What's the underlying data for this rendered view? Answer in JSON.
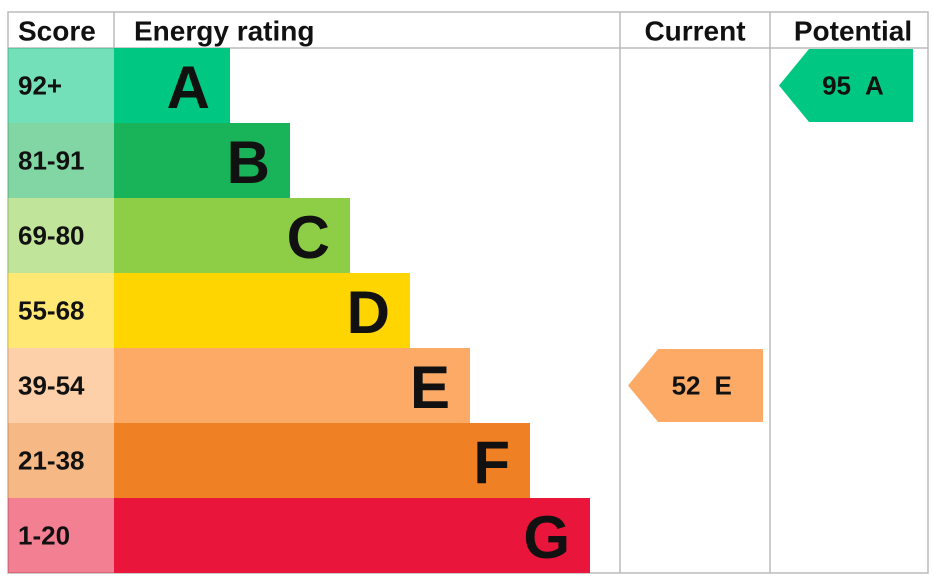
{
  "header": {
    "score": "Score",
    "rating": "Energy rating",
    "current": "Current",
    "potential": "Potential"
  },
  "bands": [
    {
      "score": "92+",
      "letter": "A",
      "color": "#00c781"
    },
    {
      "score": "81-91",
      "letter": "B",
      "color": "#19b459"
    },
    {
      "score": "69-80",
      "letter": "C",
      "color": "#8dce46"
    },
    {
      "score": "55-68",
      "letter": "D",
      "color": "#ffd500"
    },
    {
      "score": "39-54",
      "letter": "E",
      "color": "#fcaa65"
    },
    {
      "score": "21-38",
      "letter": "F",
      "color": "#ef8023"
    },
    {
      "score": "1-20",
      "letter": "G",
      "color": "#e9153b"
    }
  ],
  "current": {
    "value": "52",
    "letter": "E"
  },
  "potential": {
    "value": "95",
    "letter": "A"
  }
}
